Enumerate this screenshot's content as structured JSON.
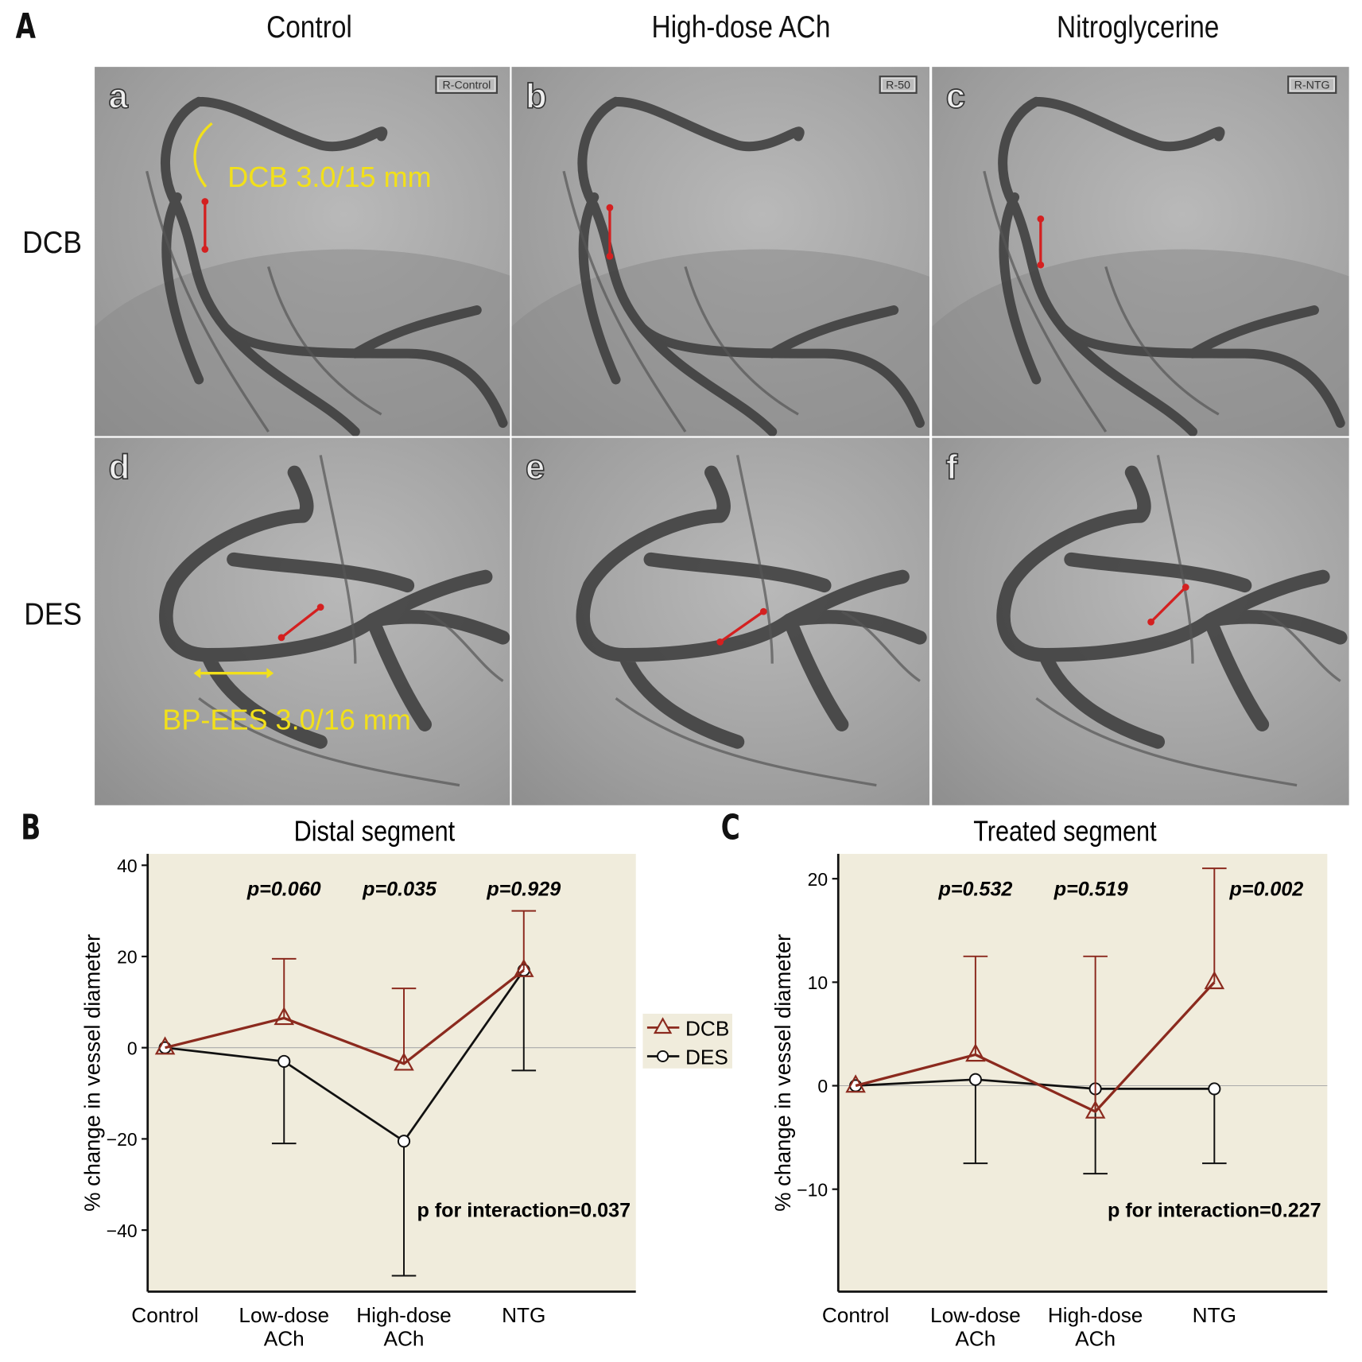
{
  "panel_labels": {
    "A": "A",
    "B": "B",
    "C": "C"
  },
  "columns": [
    "Control",
    "High-dose ACh",
    "Nitroglycerine"
  ],
  "rows": [
    "DCB",
    "DES"
  ],
  "images": [
    {
      "letter": "a",
      "tag": "R-Control",
      "annotation": "DCB 3.0/15 mm"
    },
    {
      "letter": "b",
      "tag": "R-50"
    },
    {
      "letter": "c",
      "tag": "R-NTG"
    },
    {
      "letter": "d",
      "annotation": "BP-EES 3.0/16 mm"
    },
    {
      "letter": "e"
    },
    {
      "letter": "f"
    }
  ],
  "colors": {
    "DCB": "#8b2a1e",
    "DES": "#111111",
    "plot_bg": "#f0ecdc",
    "annotation": "#f2e01a",
    "arrow": "#d42020"
  },
  "chart_data": [
    {
      "type": "line",
      "title": "Distal segment",
      "ylabel": "% change in vessel diameter",
      "xlabel": "",
      "categories": [
        "Control",
        "Low-dose ACh",
        "High-dose ACh",
        "NTG"
      ],
      "category_lines": [
        [
          "Control"
        ],
        [
          "Low-dose",
          "ACh"
        ],
        [
          "High-dose",
          "ACh"
        ],
        [
          "NTG"
        ]
      ],
      "ylim": [
        -53.5,
        42.5
      ],
      "yticks": [
        40,
        20,
        0,
        -20,
        -40
      ],
      "ytick_labels": [
        "40",
        "20",
        "0",
        "−20",
        "−40"
      ],
      "series": [
        {
          "name": "DCB",
          "marker": "triangle",
          "values": [
            0,
            6.5,
            -3.5,
            17
          ],
          "error_upper": [
            null,
            19.5,
            13,
            30
          ]
        },
        {
          "name": "DES",
          "marker": "circle",
          "values": [
            0,
            -3,
            -20.5,
            17
          ],
          "error_lower": [
            null,
            -21,
            -50,
            -5
          ]
        }
      ],
      "p_values": [
        "p=0.060",
        "p=0.035",
        "p=0.929"
      ],
      "p_interaction": "p for interaction=0.037",
      "legend": "right"
    },
    {
      "type": "line",
      "title": "Treated segment",
      "ylabel": "% change in vessel diameter",
      "xlabel": "",
      "categories": [
        "Control",
        "Low-dose ACh",
        "High-dose ACh",
        "NTG"
      ],
      "category_lines": [
        [
          "Control"
        ],
        [
          "Low-dose",
          "ACh"
        ],
        [
          "High-dose",
          "ACh"
        ],
        [
          "NTG"
        ]
      ],
      "ylim": [
        -19.9,
        22.4
      ],
      "yticks": [
        20,
        10,
        0,
        -10
      ],
      "ytick_labels": [
        "20",
        "10",
        "0",
        "−10"
      ],
      "series": [
        {
          "name": "DCB",
          "marker": "triangle",
          "values": [
            0,
            3,
            -2.5,
            10
          ],
          "error_upper": [
            null,
            12.5,
            12.5,
            21
          ]
        },
        {
          "name": "DES",
          "marker": "circle",
          "values": [
            0,
            0.6,
            -0.3,
            -0.3
          ],
          "error_lower": [
            null,
            -7.5,
            -8.5,
            -7.5
          ]
        }
      ],
      "p_values": [
        "p=0.532",
        "p=0.519",
        "p=0.002"
      ],
      "p_interaction": "p for interaction=0.227"
    }
  ]
}
